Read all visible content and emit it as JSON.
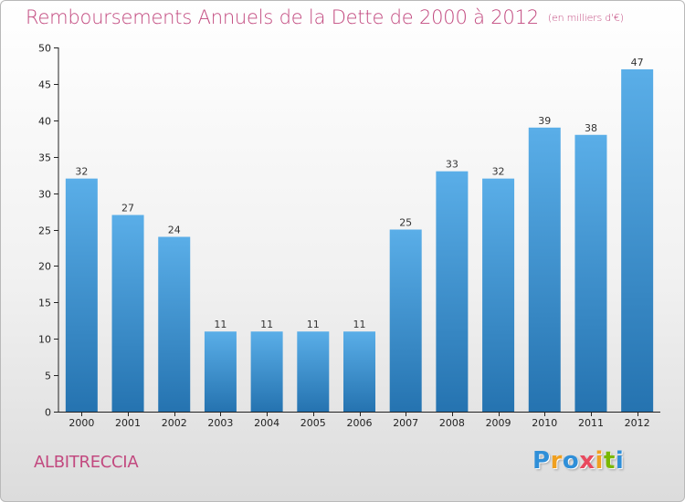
{
  "header": {
    "title": "Remboursements Annuels de la Dette de 2000 à 2012",
    "subtitle": "(en milliers d'€)"
  },
  "footer": {
    "town": "ALBITRECCIA",
    "logo_letters": [
      {
        "char": "P",
        "color": "#2f8fd8"
      },
      {
        "char": "r",
        "color": "#f0a020"
      },
      {
        "char": "o",
        "color": "#2f8fd8"
      },
      {
        "char": "x",
        "color": "#e84a5f"
      },
      {
        "char": "i",
        "color": "#f0a020"
      },
      {
        "char": "t",
        "color": "#7ab800"
      },
      {
        "char": "i",
        "color": "#2f8fd8"
      }
    ]
  },
  "colors": {
    "title": "#c2497f",
    "bar_top": "#5aaee8",
    "bar_bottom": "#2573b0"
  },
  "chart_data": {
    "type": "bar",
    "title": "Remboursements Annuels de la Dette de 2000 à 2012",
    "subtitle": "(en milliers d'€)",
    "categories": [
      "2000",
      "2001",
      "2002",
      "2003",
      "2004",
      "2005",
      "2006",
      "2007",
      "2008",
      "2009",
      "2010",
      "2011",
      "2012"
    ],
    "values": [
      32,
      27,
      24,
      11,
      11,
      11,
      11,
      25,
      33,
      32,
      39,
      38,
      47
    ],
    "ylim": [
      0,
      50
    ],
    "yticks": [
      0,
      5,
      10,
      15,
      20,
      25,
      30,
      35,
      40,
      45,
      50
    ],
    "grid": false,
    "data_labels": true
  }
}
